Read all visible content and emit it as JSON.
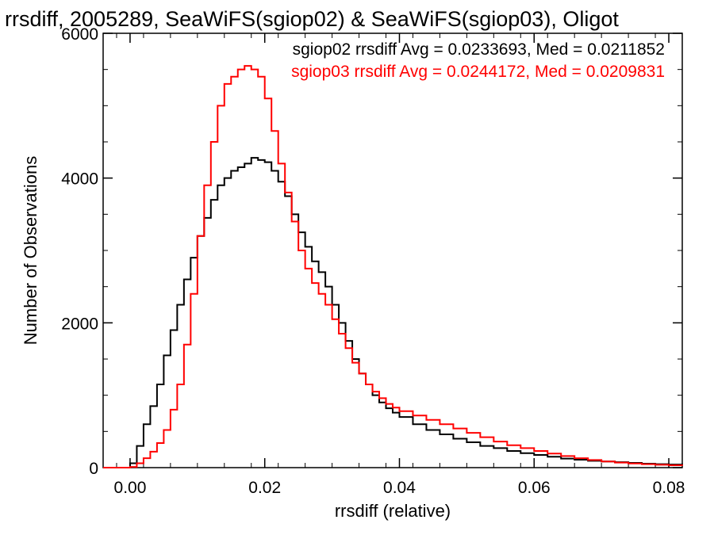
{
  "chart_data": {
    "type": "line",
    "title": "rrsdiff, 2005289, SeaWiFS(sgiop02) & SeaWiFS(sgiop03), Oligot",
    "xlabel": "rrsdiff (relative)",
    "ylabel": "Number of Observations",
    "xlim": [
      -0.004,
      0.082
    ],
    "ylim": [
      0,
      6000
    ],
    "x_ticks": [
      0.0,
      0.02,
      0.04,
      0.06,
      0.08
    ],
    "x_tick_labels": [
      "0.00",
      "0.02",
      "0.04",
      "0.06",
      "0.08"
    ],
    "y_ticks": [
      0,
      2000,
      4000,
      6000
    ],
    "y_tick_labels": [
      "0",
      "2000",
      "4000",
      "6000"
    ],
    "grid": false,
    "legend_position": "top-right",
    "annotations": [
      {
        "text": "sgiop02 rrsdiff Avg = 0.0233693, Med = 0.0211852",
        "color": "#000000"
      },
      {
        "text": "sgiop03 rrsdiff Avg = 0.0244172, Med = 0.0209831",
        "color": "#ff0000"
      }
    ],
    "series": [
      {
        "color": "#000000",
        "step": true,
        "x": [
          -0.004,
          -0.002,
          0.0,
          0.001,
          0.002,
          0.003,
          0.004,
          0.005,
          0.006,
          0.007,
          0.008,
          0.009,
          0.01,
          0.011,
          0.012,
          0.013,
          0.014,
          0.015,
          0.016,
          0.017,
          0.018,
          0.019,
          0.02,
          0.021,
          0.022,
          0.023,
          0.024,
          0.025,
          0.026,
          0.027,
          0.028,
          0.029,
          0.03,
          0.031,
          0.032,
          0.033,
          0.034,
          0.035,
          0.036,
          0.037,
          0.038,
          0.039,
          0.04,
          0.042,
          0.044,
          0.046,
          0.048,
          0.05,
          0.052,
          0.054,
          0.056,
          0.058,
          0.06,
          0.062,
          0.064,
          0.066,
          0.068,
          0.07,
          0.072,
          0.074,
          0.076,
          0.078,
          0.08,
          0.082
        ],
        "values": [
          0,
          0,
          60,
          300,
          600,
          850,
          1150,
          1550,
          1900,
          2250,
          2600,
          2900,
          3200,
          3450,
          3700,
          3900,
          4000,
          4100,
          4150,
          4200,
          4280,
          4250,
          4220,
          4100,
          3950,
          3750,
          3500,
          3250,
          3050,
          2850,
          2700,
          2500,
          2250,
          2000,
          1750,
          1500,
          1300,
          1150,
          1000,
          900,
          820,
          760,
          700,
          600,
          520,
          460,
          400,
          350,
          300,
          270,
          230,
          200,
          175,
          150,
          125,
          110,
          95,
          85,
          75,
          65,
          55,
          48,
          42,
          36
        ]
      },
      {
        "color": "#ff0000",
        "step": true,
        "x": [
          -0.004,
          -0.002,
          0.0,
          0.001,
          0.002,
          0.003,
          0.004,
          0.005,
          0.006,
          0.007,
          0.008,
          0.009,
          0.01,
          0.011,
          0.012,
          0.013,
          0.014,
          0.015,
          0.016,
          0.017,
          0.018,
          0.019,
          0.02,
          0.021,
          0.022,
          0.023,
          0.024,
          0.025,
          0.026,
          0.027,
          0.028,
          0.029,
          0.03,
          0.031,
          0.032,
          0.033,
          0.034,
          0.035,
          0.036,
          0.037,
          0.038,
          0.039,
          0.04,
          0.042,
          0.044,
          0.046,
          0.048,
          0.05,
          0.052,
          0.054,
          0.056,
          0.058,
          0.06,
          0.062,
          0.064,
          0.066,
          0.068,
          0.07,
          0.072,
          0.074,
          0.076,
          0.078,
          0.08,
          0.082
        ],
        "values": [
          0,
          0,
          10,
          60,
          130,
          220,
          340,
          520,
          800,
          1150,
          1700,
          2400,
          3200,
          3900,
          4500,
          5000,
          5300,
          5400,
          5500,
          5550,
          5500,
          5400,
          5100,
          4650,
          4200,
          3800,
          3400,
          3000,
          2750,
          2550,
          2400,
          2250,
          2050,
          1850,
          1650,
          1450,
          1300,
          1150,
          1050,
          960,
          880,
          830,
          780,
          720,
          660,
          600,
          540,
          480,
          420,
          360,
          310,
          270,
          230,
          195,
          160,
          130,
          105,
          85,
          70,
          58,
          48,
          40,
          33,
          28
        ]
      }
    ]
  }
}
